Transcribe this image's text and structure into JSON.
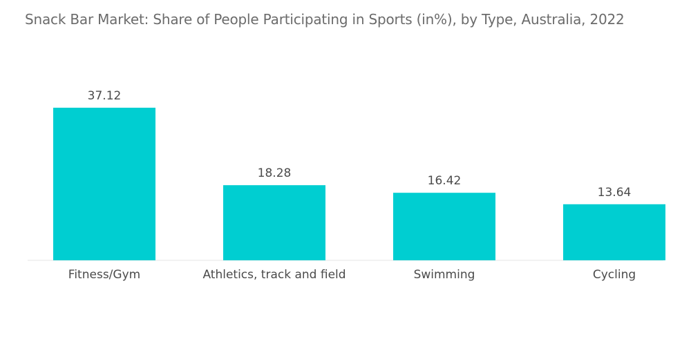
{
  "chart_data": {
    "type": "bar",
    "title": "Snack Bar Market: Share of People Participating in Sports (in%), by Type, Australia, 2022",
    "categories": [
      "Fitness/Gym",
      "Athletics, track and field",
      "Swimming",
      "Cycling"
    ],
    "values": [
      37.12,
      18.28,
      16.42,
      13.64
    ],
    "value_labels": [
      "37.12",
      "18.28",
      "16.42",
      "13.64"
    ],
    "xlabel": "",
    "ylabel": "",
    "ylim": [
      0,
      40
    ],
    "grid": false,
    "legend": "none",
    "bar_color": "#00CED1"
  }
}
